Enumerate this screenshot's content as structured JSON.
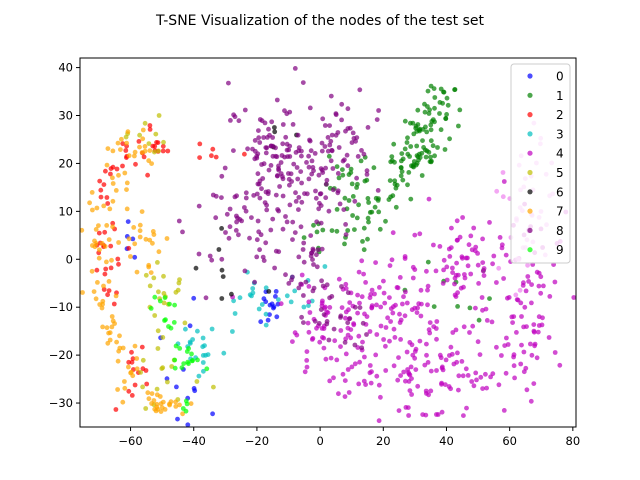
{
  "chart_data": {
    "type": "scatter",
    "title": "T-SNE Visualization of the nodes of the test set",
    "xlabel": "",
    "ylabel": "",
    "xlim": [
      -76,
      81
    ],
    "ylim": [
      -35,
      42
    ],
    "xticks": [
      -60,
      -40,
      -20,
      0,
      20,
      40,
      60,
      80
    ],
    "yticks": [
      -30,
      -20,
      -10,
      0,
      10,
      20,
      30,
      40
    ],
    "grid": false,
    "legend_placement": "top-right",
    "legend_title": "",
    "marker_opacity": 0.7,
    "series": [
      {
        "name": "0",
        "color": "#0000ff",
        "clusters": [
          {
            "cx": -15,
            "cy": -10,
            "sx": 3,
            "sy": 2,
            "n": 14
          },
          {
            "cx": -45,
            "cy": -26,
            "sx": 5,
            "sy": 6,
            "n": 12
          },
          {
            "cx": -60,
            "cy": 2,
            "sx": 3,
            "sy": 4,
            "n": 5
          }
        ]
      },
      {
        "name": "1",
        "color": "#008000",
        "path": [
          [
            18,
            10
          ],
          [
            25,
            18
          ],
          [
            30,
            22
          ],
          [
            35,
            28
          ],
          [
            40,
            35
          ]
        ],
        "spread": 3,
        "n": 120,
        "extra": [
          {
            "cx": 10,
            "cy": 17,
            "sx": 5,
            "sy": 4,
            "n": 25
          },
          {
            "cx": 5,
            "cy": 5,
            "sx": 5,
            "sy": 3,
            "n": 20
          },
          {
            "cx": 38,
            "cy": -5,
            "sx": 8,
            "sy": 4,
            "n": 10
          }
        ]
      },
      {
        "name": "2",
        "color": "#ff0000",
        "path": [
          [
            -68,
            -8
          ],
          [
            -68,
            5
          ],
          [
            -64,
            20
          ],
          [
            -56,
            25
          ],
          [
            -50,
            22
          ]
        ],
        "spread": 2.5,
        "n": 55,
        "extra": [
          {
            "cx": -60,
            "cy": -25,
            "sx": 4,
            "sy": 5,
            "n": 15
          },
          {
            "cx": -34,
            "cy": 22,
            "sx": 3,
            "sy": 1,
            "n": 6
          }
        ]
      },
      {
        "name": "3",
        "color": "#00bfbf",
        "clusters": [
          {
            "cx": -38,
            "cy": -18,
            "sx": 3,
            "sy": 3,
            "n": 20
          },
          {
            "cx": -20,
            "cy": -8,
            "sx": 4,
            "sy": 3,
            "n": 15
          },
          {
            "cx": -5,
            "cy": -5,
            "sx": 4,
            "sy": 3,
            "n": 10
          }
        ]
      },
      {
        "name": "4",
        "color": "#bf00bf",
        "clusters": [
          {
            "cx": 35,
            "cy": -25,
            "sx": 12,
            "sy": 5,
            "n": 110
          },
          {
            "cx": 10,
            "cy": -15,
            "sx": 12,
            "sy": 6,
            "n": 110
          },
          {
            "cx": 45,
            "cy": -2,
            "sx": 13,
            "sy": 6,
            "n": 100
          },
          {
            "cx": 65,
            "cy": -12,
            "sx": 5,
            "sy": 9,
            "n": 60
          },
          {
            "cx": 25,
            "cy": -8,
            "sx": 8,
            "sy": 4,
            "n": 40
          }
        ]
      },
      {
        "name": "5",
        "color": "#bfbf00",
        "clusters": [
          {
            "cx": -50,
            "cy": -8,
            "sx": 3,
            "sy": 4,
            "n": 20
          },
          {
            "cx": -55,
            "cy": 25,
            "sx": 4,
            "sy": 2,
            "n": 10
          },
          {
            "cx": -48,
            "cy": -25,
            "sx": 5,
            "sy": 4,
            "n": 15
          }
        ]
      },
      {
        "name": "6",
        "color": "#000000",
        "clusters": [
          {
            "cx": -30,
            "cy": 0,
            "sx": 5,
            "sy": 5,
            "n": 8
          },
          {
            "cx": -15,
            "cy": 28,
            "sx": 3,
            "sy": 3,
            "n": 4
          }
        ]
      },
      {
        "name": "7",
        "color": "#ffa500",
        "path": [
          [
            -58,
            -28
          ],
          [
            -66,
            -15
          ],
          [
            -70,
            0
          ],
          [
            -68,
            12
          ],
          [
            -62,
            22
          ],
          [
            -52,
            26
          ]
        ],
        "spread": 2.5,
        "n": 90,
        "extra": [
          {
            "cx": -48,
            "cy": -30,
            "sx": 4,
            "sy": 1.5,
            "n": 25
          },
          {
            "cx": -56,
            "cy": 3,
            "sx": 3,
            "sy": 5,
            "n": 20
          }
        ]
      },
      {
        "name": "8",
        "color": "#800080",
        "clusters": [
          {
            "cx": -15,
            "cy": 22,
            "sx": 7,
            "sy": 6,
            "n": 80
          },
          {
            "cx": 0,
            "cy": 17,
            "sx": 8,
            "sy": 7,
            "n": 90
          },
          {
            "cx": -25,
            "cy": 8,
            "sx": 7,
            "sy": 6,
            "n": 60
          },
          {
            "cx": -5,
            "cy": -3,
            "sx": 6,
            "sy": 4,
            "n": 30
          },
          {
            "cx": 5,
            "cy": -12,
            "sx": 6,
            "sy": 3,
            "n": 25
          },
          {
            "cx": 8,
            "cy": 28,
            "sx": 6,
            "sy": 3,
            "n": 25
          }
        ]
      },
      {
        "name": "9",
        "color": "#00ff00",
        "clusters": [
          {
            "cx": -42,
            "cy": -22,
            "sx": 3,
            "sy": 5,
            "n": 20
          },
          {
            "cx": -50,
            "cy": -10,
            "sx": 3,
            "sy": 3,
            "n": 10
          }
        ]
      },
      {
        "name": "4-light",
        "color": "#ee82ee",
        "legend": false,
        "clusters": [
          {
            "cx": 66,
            "cy": 10,
            "sx": 5,
            "sy": 9,
            "n": 40
          }
        ]
      }
    ]
  }
}
